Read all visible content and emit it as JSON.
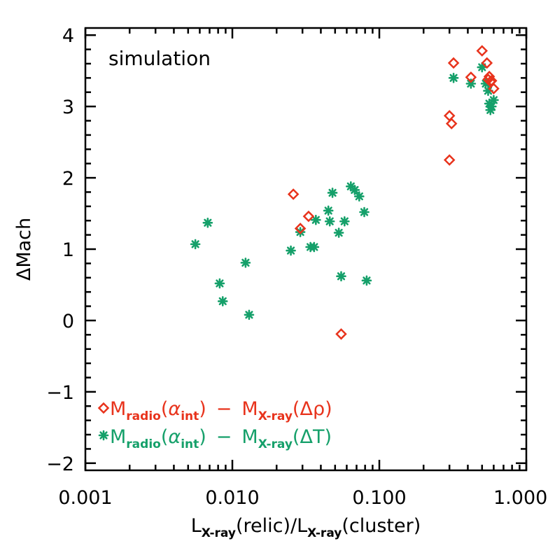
{
  "chart_data": {
    "type": "scatter",
    "title": "",
    "annotation": "simulation",
    "xlabel": {
      "main1": "L",
      "sub1": "X-ray",
      "mid": "(relic)/L",
      "sub2": "X-ray",
      "end": "(cluster)"
    },
    "ylabel": "ΔMach",
    "xscale": "log",
    "xlim": [
      0.001,
      1.0
    ],
    "ylim": [
      -2.1,
      4.1
    ],
    "xticks": [
      {
        "value": 0.001,
        "label": "0.001"
      },
      {
        "value": 0.01,
        "label": "0.010"
      },
      {
        "value": 0.1,
        "label": "0.100"
      },
      {
        "value": 1.0,
        "label": "1.000"
      }
    ],
    "yticks": [
      {
        "value": -2,
        "label": "−2"
      },
      {
        "value": -1,
        "label": "−1"
      },
      {
        "value": 0,
        "label": "0"
      },
      {
        "value": 1,
        "label": "1"
      },
      {
        "value": 2,
        "label": "2"
      },
      {
        "value": 3,
        "label": "3"
      },
      {
        "value": 4,
        "label": "4"
      }
    ],
    "series": [
      {
        "name": "radio-minus-xray-density",
        "legend": {
          "M1": "M",
          "sub1": "radio",
          "open1": "(",
          "greek": "α",
          "sub_int": "int",
          "close1": ")",
          "minus": "−",
          "M2": "M",
          "sub2": "X-ray",
          "open2": "(",
          "quantity": "Δρ",
          "close2": ")"
        },
        "marker": "diamond",
        "color": "#e8331c",
        "points": [
          [
            0.026,
            1.77
          ],
          [
            0.029,
            1.29
          ],
          [
            0.033,
            1.46
          ],
          [
            0.055,
            -0.19
          ],
          [
            0.3,
            2.25
          ],
          [
            0.3,
            2.87
          ],
          [
            0.31,
            2.76
          ],
          [
            0.32,
            3.61
          ],
          [
            0.42,
            3.41
          ],
          [
            0.5,
            3.78
          ],
          [
            0.54,
            3.61
          ],
          [
            0.55,
            3.38
          ],
          [
            0.56,
            3.42
          ],
          [
            0.57,
            3.35
          ],
          [
            0.58,
            3.36
          ],
          [
            0.6,
            3.25
          ]
        ]
      },
      {
        "name": "radio-minus-xray-temperature",
        "legend": {
          "M1": "M",
          "sub1": "radio",
          "open1": "(",
          "greek": "α",
          "sub_int": "int",
          "close1": ")",
          "minus": "−",
          "M2": "M",
          "sub2": "X-ray",
          "open2": "(",
          "quantity": "ΔT",
          "close2": ")"
        },
        "marker": "asterisk",
        "color": "#15a06a",
        "points": [
          [
            0.0056,
            1.07
          ],
          [
            0.0068,
            1.37
          ],
          [
            0.0082,
            0.52
          ],
          [
            0.0086,
            0.27
          ],
          [
            0.0123,
            0.81
          ],
          [
            0.013,
            0.08
          ],
          [
            0.025,
            0.98
          ],
          [
            0.029,
            1.24
          ],
          [
            0.034,
            1.03
          ],
          [
            0.036,
            1.03
          ],
          [
            0.037,
            1.41
          ],
          [
            0.045,
            1.54
          ],
          [
            0.046,
            1.39
          ],
          [
            0.048,
            1.79
          ],
          [
            0.053,
            1.23
          ],
          [
            0.055,
            0.62
          ],
          [
            0.058,
            1.39
          ],
          [
            0.064,
            1.88
          ],
          [
            0.068,
            1.83
          ],
          [
            0.073,
            1.74
          ],
          [
            0.079,
            1.52
          ],
          [
            0.082,
            0.56
          ],
          [
            0.32,
            3.4
          ],
          [
            0.42,
            3.32
          ],
          [
            0.5,
            3.55
          ],
          [
            0.53,
            3.32
          ],
          [
            0.55,
            3.22
          ],
          [
            0.56,
            3.04
          ],
          [
            0.57,
            2.95
          ],
          [
            0.58,
            3.0
          ],
          [
            0.6,
            3.09
          ]
        ]
      }
    ]
  }
}
